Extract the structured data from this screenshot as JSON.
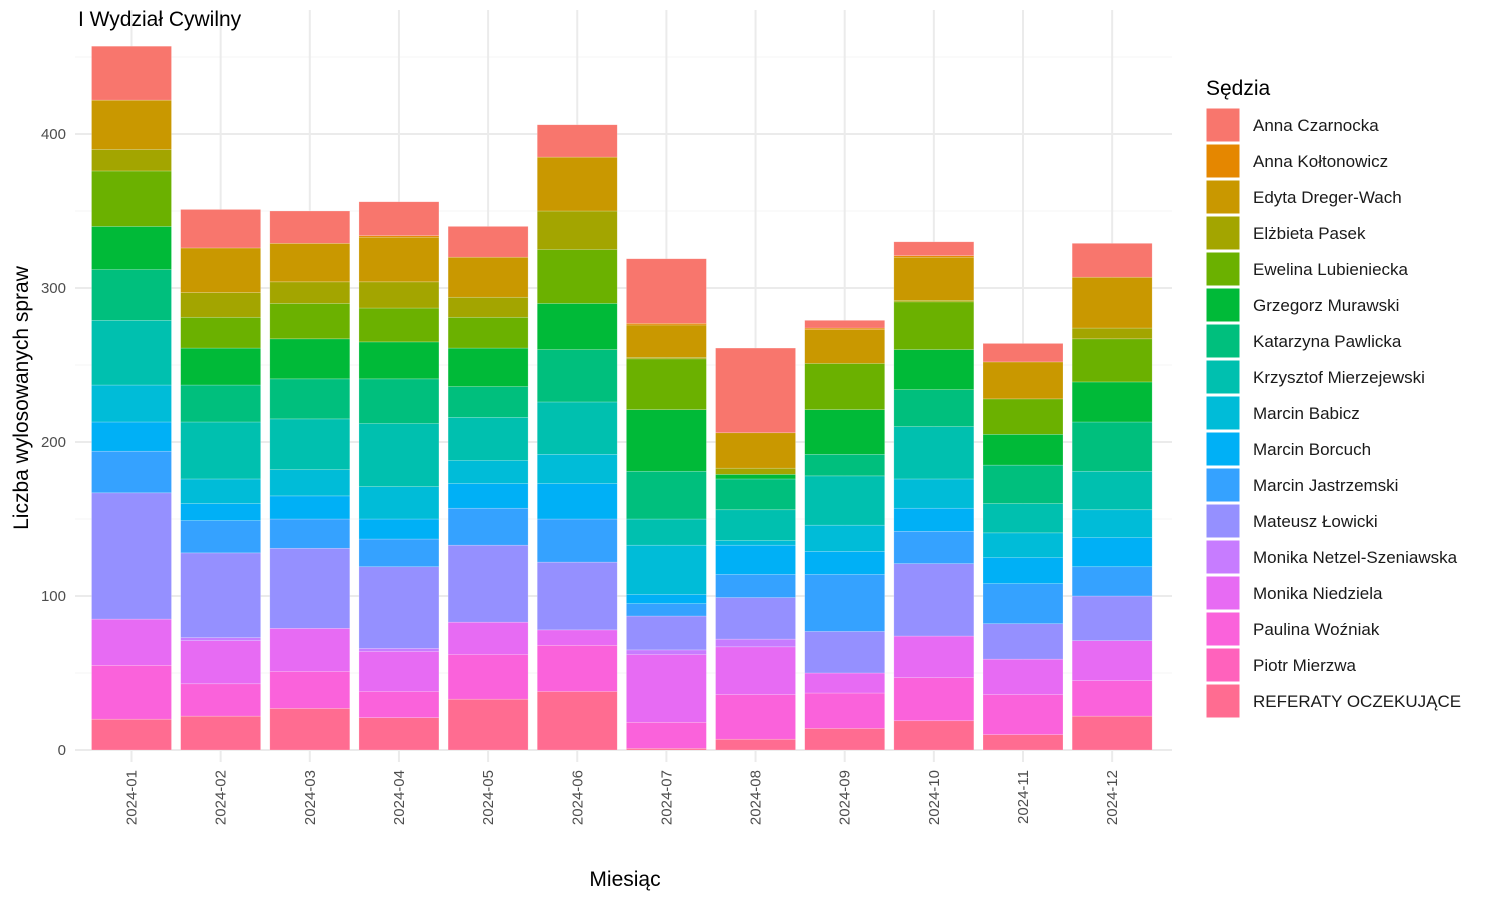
{
  "chart_data": {
    "type": "bar",
    "stacked": true,
    "title": "I Wydział Cywilny",
    "xlabel": "Miesiąc",
    "ylabel": "Liczba wylosowanych spraw",
    "legend_title": "Sędzia",
    "legend_position": "right",
    "grid": true,
    "ylim": [
      0,
      460
    ],
    "yticks": [
      0,
      100,
      200,
      300,
      400
    ],
    "categories": [
      "2024-01",
      "2024-02",
      "2024-03",
      "2024-04",
      "2024-05",
      "2024-06",
      "2024-07",
      "2024-08",
      "2024-09",
      "2024-10",
      "2024-11",
      "2024-12"
    ],
    "series": [
      {
        "name": "Anna Czarnocka",
        "color": "#F8766D",
        "values": [
          35,
          25,
          21,
          22,
          20,
          21,
          42,
          55,
          5,
          9,
          12,
          22
        ]
      },
      {
        "name": "Anna Kołtonowicz",
        "color": "#E58700",
        "values": [
          0,
          0,
          0,
          1,
          0,
          0,
          1,
          0,
          1,
          1,
          0,
          0
        ]
      },
      {
        "name": "Edyta Dreger-Wach",
        "color": "#C99800",
        "values": [
          32,
          29,
          25,
          29,
          26,
          35,
          21,
          23,
          22,
          28,
          24,
          33
        ]
      },
      {
        "name": "Elżbieta Pasek",
        "color": "#A3A500",
        "values": [
          14,
          16,
          14,
          17,
          13,
          25,
          1,
          4,
          0,
          1,
          0,
          7
        ]
      },
      {
        "name": "Ewelina Lubieniecka",
        "color": "#6BB100",
        "values": [
          36,
          20,
          23,
          22,
          20,
          35,
          33,
          0,
          30,
          31,
          23,
          28
        ]
      },
      {
        "name": "Grzegorz Murawski",
        "color": "#00BA38",
        "values": [
          28,
          24,
          26,
          24,
          25,
          30,
          40,
          3,
          29,
          26,
          20,
          26
        ]
      },
      {
        "name": "Katarzyna Pawlicka",
        "color": "#00BF7D",
        "values": [
          33,
          24,
          26,
          29,
          20,
          34,
          31,
          20,
          14,
          24,
          25,
          32
        ]
      },
      {
        "name": "Krzysztof Mierzejewski",
        "color": "#00C0AF",
        "values": [
          42,
          37,
          33,
          41,
          28,
          34,
          17,
          20,
          32,
          34,
          19,
          25
        ]
      },
      {
        "name": "Marcin Babicz",
        "color": "#00BCD8",
        "values": [
          24,
          16,
          17,
          21,
          15,
          19,
          32,
          3,
          17,
          19,
          16,
          18
        ]
      },
      {
        "name": "Marcin Borcuch",
        "color": "#00B0F6",
        "values": [
          19,
          11,
          15,
          13,
          16,
          23,
          6,
          19,
          15,
          15,
          17,
          19
        ]
      },
      {
        "name": "Marcin Jastrzemski",
        "color": "#35A2FF",
        "values": [
          27,
          21,
          19,
          18,
          24,
          28,
          8,
          15,
          37,
          21,
          26,
          19
        ]
      },
      {
        "name": "Mateusz Łowicki",
        "color": "#9590FF",
        "values": [
          82,
          55,
          52,
          53,
          50,
          44,
          22,
          27,
          27,
          47,
          23,
          29
        ]
      },
      {
        "name": "Monika Netzel-Szeniawska",
        "color": "#C77CFF",
        "values": [
          0,
          2,
          0,
          2,
          0,
          0,
          3,
          5,
          0,
          0,
          0,
          0
        ]
      },
      {
        "name": "Monika Niedziela",
        "color": "#E76BF3",
        "values": [
          30,
          28,
          28,
          26,
          21,
          10,
          44,
          31,
          13,
          27,
          23,
          26
        ]
      },
      {
        "name": "Paulina Woźniak",
        "color": "#FA62DB",
        "values": [
          35,
          21,
          24,
          17,
          29,
          30,
          17,
          29,
          23,
          28,
          26,
          23
        ]
      },
      {
        "name": "Piotr Mierzwa",
        "color": "#FF62BC",
        "values": [
          0,
          0,
          0,
          0,
          0,
          0,
          0,
          0,
          0,
          0,
          0,
          0
        ]
      },
      {
        "name": "REFERATY OCZEKUJĄCE",
        "color": "#FF6C91",
        "values": [
          20,
          22,
          27,
          21,
          33,
          38,
          1,
          7,
          14,
          19,
          10,
          22
        ]
      }
    ]
  }
}
